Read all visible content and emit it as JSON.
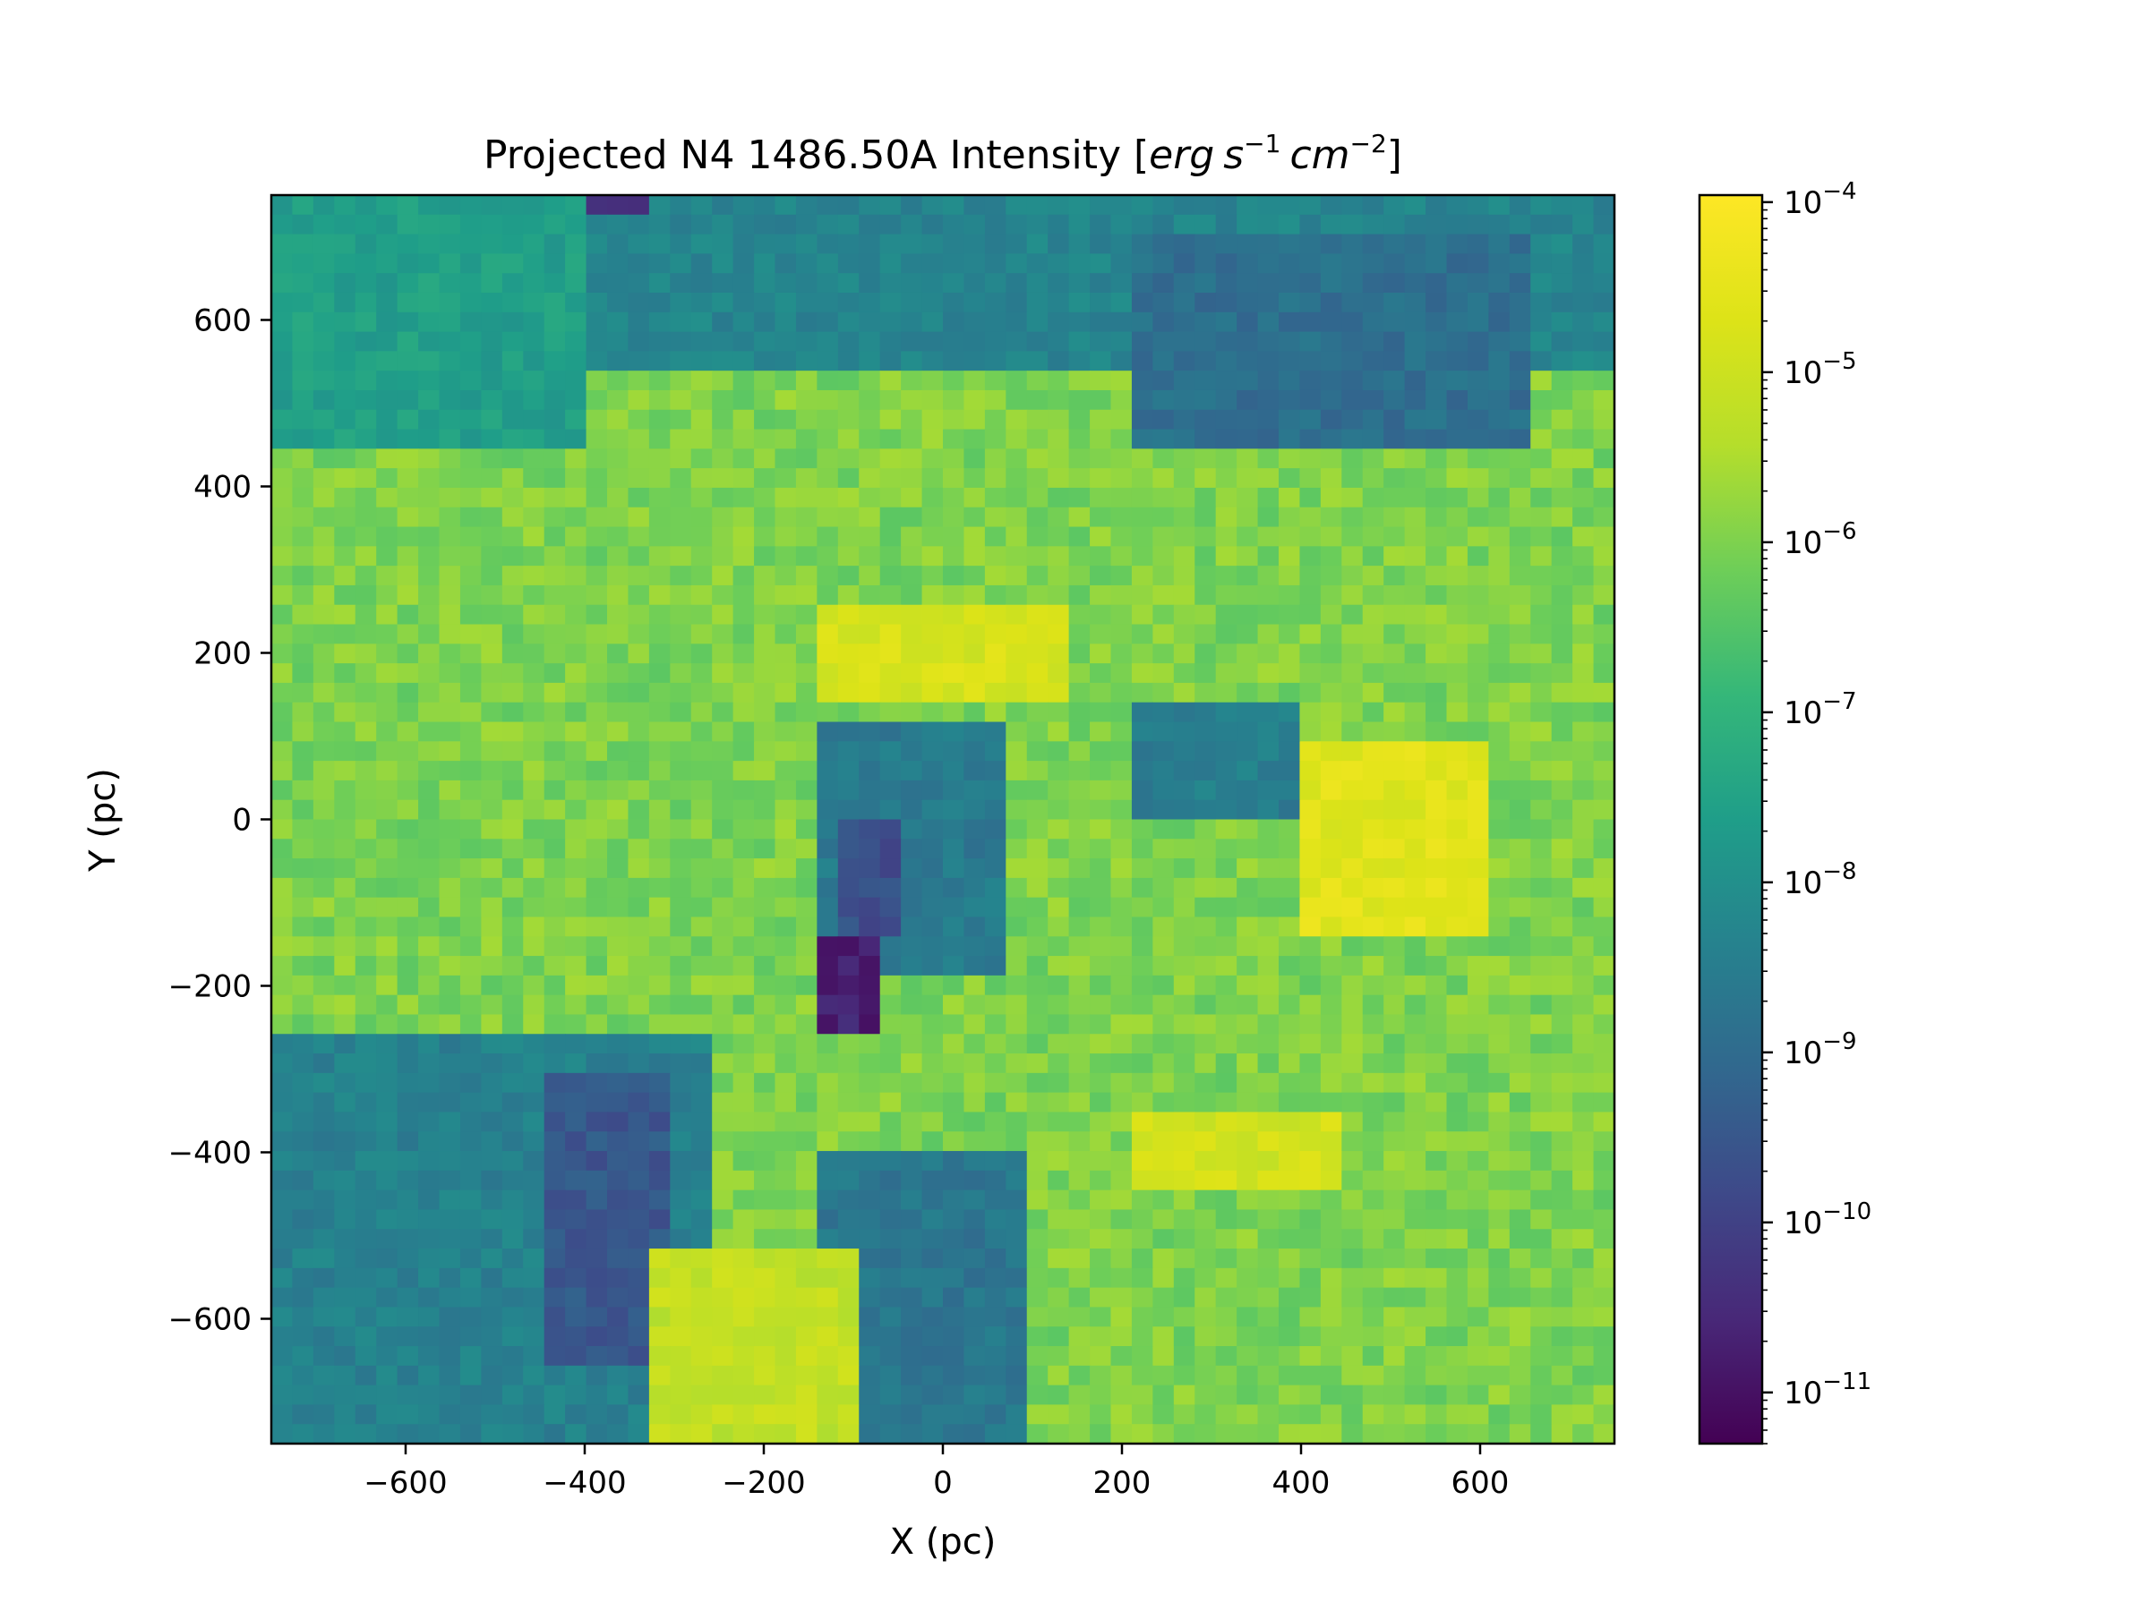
{
  "chart_data": {
    "type": "heatmap",
    "title": "Projected N4 1486.50A Intensity [",
    "title_math": [
      "erg",
      "s",
      "−1",
      "cm",
      "−2"
    ],
    "title_close": "]",
    "xlabel": "X (pc)",
    "ylabel": "Y (pc)",
    "xlim": [
      -750,
      750
    ],
    "ylim": [
      -750,
      750
    ],
    "xticks": [
      -600,
      -400,
      -200,
      0,
      200,
      400,
      600
    ],
    "yticks": [
      -600,
      -400,
      -200,
      0,
      200,
      400,
      600
    ],
    "xtick_labels": [
      "−600",
      "−400",
      "−200",
      "0",
      "200",
      "400",
      "600"
    ],
    "ytick_labels": [
      "−600",
      "−400",
      "−200",
      "0",
      "200",
      "400",
      "600"
    ],
    "colormap": "viridis",
    "colorbar": {
      "scale": "log",
      "range": [
        5e-12,
        0.00011
      ],
      "ticks": [
        {
          "base": "10",
          "exp": "−4",
          "value": 0.0001
        },
        {
          "base": "10",
          "exp": "−5",
          "value": 1e-05
        },
        {
          "base": "10",
          "exp": "−6",
          "value": 1e-06
        },
        {
          "base": "10",
          "exp": "−7",
          "value": 1e-07
        },
        {
          "base": "10",
          "exp": "−8",
          "value": 1e-08
        },
        {
          "base": "10",
          "exp": "−9",
          "value": 1e-09
        },
        {
          "base": "10",
          "exp": "−10",
          "value": 1e-10
        },
        {
          "base": "10",
          "exp": "−11",
          "value": 1e-11
        }
      ]
    },
    "grid": false,
    "regions": [
      {
        "desc": "top band",
        "x": [
          -750,
          750
        ],
        "y": [
          550,
          750
        ],
        "log10": -8.3
      },
      {
        "desc": "upper-left",
        "x": [
          -750,
          -400
        ],
        "y": [
          450,
          750
        ],
        "log10": -7.6
      },
      {
        "desc": "upper-right dim",
        "x": [
          200,
          650
        ],
        "y": [
          450,
          700
        ],
        "log10": -8.9
      },
      {
        "desc": "top edge dark",
        "x": [
          -400,
          -330
        ],
        "y": [
          730,
          750
        ],
        "log10": -10.5
      },
      {
        "desc": "central void",
        "x": [
          -130,
          80
        ],
        "y": [
          -180,
          110
        ],
        "log10": -8.6
      },
      {
        "desc": "central void core",
        "x": [
          -110,
          -40
        ],
        "y": [
          -150,
          0
        ],
        "log10": -9.7
      },
      {
        "desc": "darkest patch",
        "x": [
          -150,
          -60
        ],
        "y": [
          -250,
          -150
        ],
        "log10": -10.7
      },
      {
        "desc": "right void",
        "x": [
          200,
          400
        ],
        "y": [
          0,
          130
        ],
        "log10": -8.5
      },
      {
        "desc": "bright shell east",
        "x": [
          400,
          620
        ],
        "y": [
          -150,
          100
        ],
        "log10": -4.6
      },
      {
        "desc": "bright ring north",
        "x": [
          -150,
          150
        ],
        "y": [
          150,
          250
        ],
        "log10": -4.8
      },
      {
        "desc": "bright arc south",
        "x": [
          200,
          450
        ],
        "y": [
          -450,
          -350
        ],
        "log10": -4.9
      },
      {
        "desc": "lower-left dim",
        "x": [
          -750,
          -250
        ],
        "y": [
          -750,
          -250
        ],
        "log10": -8.4
      },
      {
        "desc": "lower-left dark",
        "x": [
          -450,
          -300
        ],
        "y": [
          -650,
          -300
        ],
        "log10": -9.5
      },
      {
        "desc": "lower middle void",
        "x": [
          -150,
          100
        ],
        "y": [
          -750,
          -400
        ],
        "log10": -8.7
      },
      {
        "desc": "lower bright block",
        "x": [
          -330,
          -100
        ],
        "y": [
          -750,
          -520
        ],
        "log10": -5.2
      }
    ]
  }
}
